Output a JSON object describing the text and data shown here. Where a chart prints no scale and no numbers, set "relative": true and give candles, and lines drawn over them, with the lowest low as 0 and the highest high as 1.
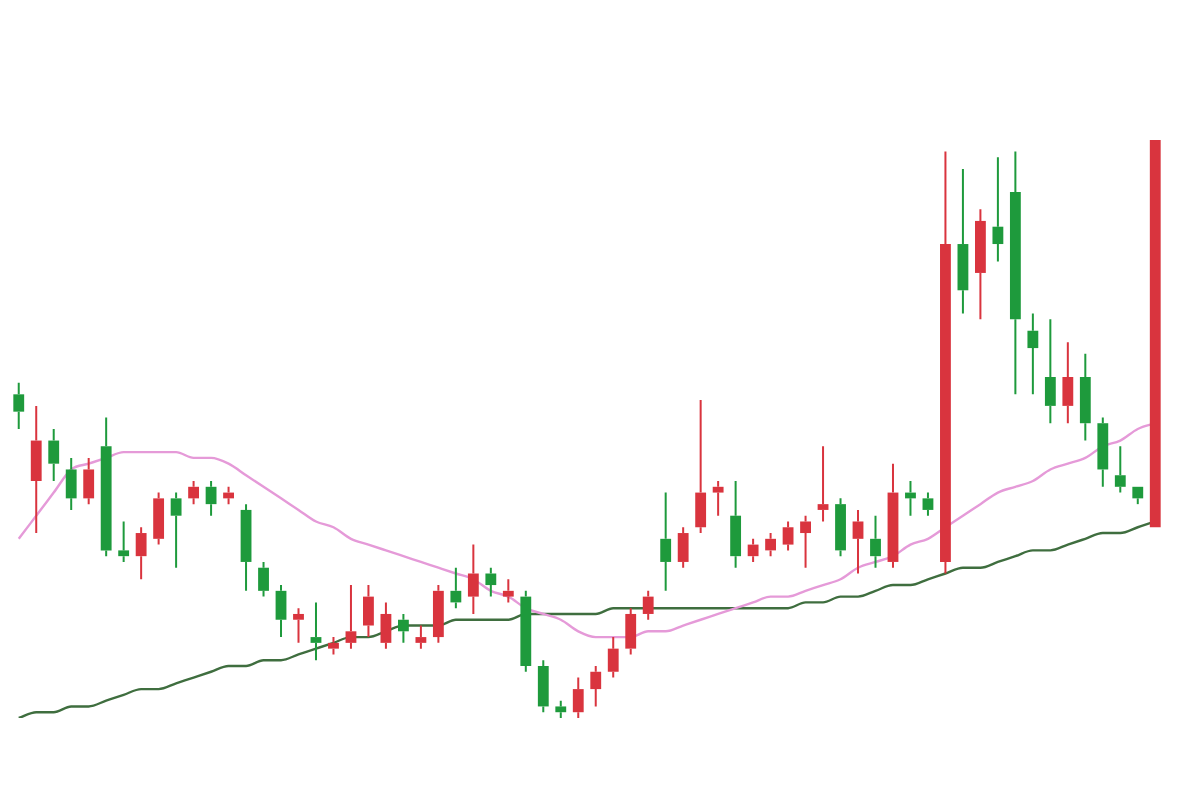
{
  "chart_data": {
    "type": "candlestick",
    "relative": true,
    "categories": [
      null,
      null,
      null,
      null,
      null,
      null,
      null,
      null,
      null,
      null,
      null,
      null,
      null,
      null,
      null,
      null,
      null,
      null,
      null,
      null,
      null,
      null,
      null,
      null,
      null,
      null,
      null,
      null,
      null,
      null,
      null,
      null,
      null,
      null,
      null,
      null,
      null,
      null,
      null,
      null,
      null,
      null,
      null,
      null,
      null,
      null,
      null,
      null,
      null,
      null,
      null,
      null,
      null,
      null,
      null,
      null,
      null,
      null,
      null,
      null,
      null,
      null,
      null,
      null,
      null,
      null
    ],
    "ohlc": [
      [
        0.56,
        0.58,
        0.5,
        0.53
      ],
      [
        0.41,
        0.54,
        0.32,
        0.48
      ],
      [
        0.48,
        0.5,
        0.41,
        0.44
      ],
      [
        0.43,
        0.45,
        0.36,
        0.38
      ],
      [
        0.38,
        0.45,
        0.37,
        0.43
      ],
      [
        0.47,
        0.52,
        0.28,
        0.29
      ],
      [
        0.29,
        0.34,
        0.27,
        0.28
      ],
      [
        0.28,
        0.33,
        0.24,
        0.32
      ],
      [
        0.31,
        0.39,
        0.3,
        0.38
      ],
      [
        0.38,
        0.39,
        0.26,
        0.35
      ],
      [
        0.38,
        0.41,
        0.37,
        0.4
      ],
      [
        0.4,
        0.41,
        0.35,
        0.37
      ],
      [
        0.38,
        0.4,
        0.37,
        0.39
      ],
      [
        0.36,
        0.37,
        0.22,
        0.27
      ],
      [
        0.26,
        0.27,
        0.21,
        0.22
      ],
      [
        0.22,
        0.23,
        0.14,
        0.17
      ],
      [
        0.17,
        0.19,
        0.13,
        0.18
      ],
      [
        0.14,
        0.2,
        0.1,
        0.13
      ],
      [
        0.12,
        0.14,
        0.11,
        0.13
      ],
      [
        0.13,
        0.23,
        0.12,
        0.15
      ],
      [
        0.16,
        0.23,
        0.14,
        0.21
      ],
      [
        0.13,
        0.2,
        0.12,
        0.18
      ],
      [
        0.17,
        0.18,
        0.13,
        0.15
      ],
      [
        0.13,
        0.16,
        0.12,
        0.14
      ],
      [
        0.14,
        0.23,
        0.13,
        0.22
      ],
      [
        0.22,
        0.26,
        0.19,
        0.2
      ],
      [
        0.21,
        0.3,
        0.18,
        0.25
      ],
      [
        0.25,
        0.26,
        0.21,
        0.23
      ],
      [
        0.21,
        0.24,
        0.2,
        0.22
      ],
      [
        0.21,
        0.22,
        0.08,
        0.09
      ],
      [
        0.09,
        0.1,
        0.01,
        0.02
      ],
      [
        0.02,
        0.03,
        0,
        0.01
      ],
      [
        0.01,
        0.07,
        0,
        0.05
      ],
      [
        0.05,
        0.09,
        0.02,
        0.08
      ],
      [
        0.08,
        0.14,
        0.07,
        0.12
      ],
      [
        0.12,
        0.19,
        0.11,
        0.18
      ],
      [
        0.18,
        0.22,
        0.17,
        0.21
      ],
      [
        0.31,
        0.39,
        0.22,
        0.27
      ],
      [
        0.27,
        0.33,
        0.26,
        0.32
      ],
      [
        0.33,
        0.55,
        0.32,
        0.39
      ],
      [
        0.39,
        0.41,
        0.35,
        0.4
      ],
      [
        0.35,
        0.41,
        0.26,
        0.28
      ],
      [
        0.28,
        0.31,
        0.27,
        0.3
      ],
      [
        0.29,
        0.32,
        0.28,
        0.31
      ],
      [
        0.3,
        0.34,
        0.29,
        0.33
      ],
      [
        0.32,
        0.35,
        0.26,
        0.34
      ],
      [
        0.36,
        0.47,
        0.34,
        0.37
      ],
      [
        0.37,
        0.38,
        0.28,
        0.29
      ],
      [
        0.31,
        0.36,
        0.25,
        0.34
      ],
      [
        0.31,
        0.35,
        0.26,
        0.28
      ],
      [
        0.27,
        0.44,
        0.26,
        0.39
      ],
      [
        0.39,
        0.41,
        0.35,
        0.38
      ],
      [
        0.38,
        0.39,
        0.35,
        0.36
      ],
      [
        0.27,
        0.98,
        0.25,
        0.82
      ],
      [
        0.82,
        0.95,
        0.7,
        0.74
      ],
      [
        0.77,
        0.88,
        0.69,
        0.86
      ],
      [
        0.85,
        0.97,
        0.79,
        0.82
      ],
      [
        0.91,
        0.98,
        0.56,
        0.69
      ],
      [
        0.67,
        0.7,
        0.56,
        0.64
      ],
      [
        0.59,
        0.69,
        0.51,
        0.54
      ],
      [
        0.54,
        0.65,
        0.51,
        0.59
      ],
      [
        0.59,
        0.63,
        0.48,
        0.51
      ],
      [
        0.51,
        0.52,
        0.4,
        0.43
      ],
      [
        0.42,
        0.47,
        0.39,
        0.4
      ],
      [
        0.4,
        0.4,
        0.37,
        0.38
      ],
      [
        0.33,
        1,
        0.33,
        1
      ]
    ],
    "colors": [
      "#1e9a3c",
      "#d9343e",
      "#1e9a3c",
      "#1e9a3c",
      "#d9343e",
      "#1e9a3c",
      "#1e9a3c",
      "#d9343e",
      "#d9343e",
      "#1e9a3c",
      "#d9343e",
      "#1e9a3c",
      "#d9343e",
      "#1e9a3c",
      "#1e9a3c",
      "#1e9a3c",
      "#d9343e",
      "#1e9a3c",
      "#d9343e",
      "#d9343e",
      "#d9343e",
      "#d9343e",
      "#1e9a3c",
      "#d9343e",
      "#d9343e",
      "#1e9a3c",
      "#d9343e",
      "#1e9a3c",
      "#d9343e",
      "#1e9a3c",
      "#1e9a3c",
      "#1e9a3c",
      "#d9343e",
      "#d9343e",
      "#d9343e",
      "#d9343e",
      "#d9343e",
      "#1e9a3c",
      "#d9343e",
      "#d9343e",
      "#d9343e",
      "#1e9a3c",
      "#d9343e",
      "#d9343e",
      "#d9343e",
      "#d9343e",
      "#d9343e",
      "#1e9a3c",
      "#d9343e",
      "#1e9a3c",
      "#d9343e",
      "#1e9a3c",
      "#1e9a3c",
      "#d9343e",
      "#1e9a3c",
      "#d9343e",
      "#1e9a3c",
      "#1e9a3c",
      "#1e9a3c",
      "#1e9a3c",
      "#d9343e",
      "#1e9a3c",
      "#1e9a3c",
      "#1e9a3c",
      "#1e9a3c",
      "#d9343e"
    ],
    "series": [
      {
        "type": "line",
        "color": "#e59ad8",
        "values": [
          0.31,
          0.35,
          0.39,
          0.43,
          0.44,
          0.45,
          0.46,
          0.46,
          0.46,
          0.46,
          0.45,
          0.45,
          0.44,
          0.42,
          0.4,
          0.38,
          0.36,
          0.34,
          0.33,
          0.31,
          0.3,
          0.29,
          0.28,
          0.27,
          0.26,
          0.25,
          0.24,
          0.22,
          0.21,
          0.19,
          0.18,
          0.17,
          0.15,
          0.14,
          0.14,
          0.14,
          0.15,
          0.15,
          0.16,
          0.17,
          0.18,
          0.19,
          0.2,
          0.21,
          0.21,
          0.22,
          0.23,
          0.24,
          0.26,
          0.27,
          0.28,
          0.3,
          0.31,
          0.33,
          0.35,
          0.37,
          0.39,
          0.4,
          0.41,
          0.43,
          0.44,
          0.45,
          0.47,
          0.48,
          0.5,
          0.51
        ]
      },
      {
        "type": "line",
        "color": "#3f6e3f",
        "values": [
          0,
          0.01,
          0.01,
          0.02,
          0.02,
          0.03,
          0.04,
          0.05,
          0.05,
          0.06,
          0.07,
          0.08,
          0.09,
          0.09,
          0.1,
          0.1,
          0.11,
          0.12,
          0.13,
          0.14,
          0.14,
          0.15,
          0.16,
          0.16,
          0.16,
          0.17,
          0.17,
          0.17,
          0.17,
          0.18,
          0.18,
          0.18,
          0.18,
          0.18,
          0.19,
          0.19,
          0.19,
          0.19,
          0.19,
          0.19,
          0.19,
          0.19,
          0.19,
          0.19,
          0.19,
          0.2,
          0.2,
          0.21,
          0.21,
          0.22,
          0.23,
          0.23,
          0.24,
          0.25,
          0.26,
          0.26,
          0.27,
          0.28,
          0.29,
          0.29,
          0.3,
          0.31,
          0.32,
          0.32,
          0.33,
          0.34
        ]
      }
    ],
    "legend": false
  }
}
